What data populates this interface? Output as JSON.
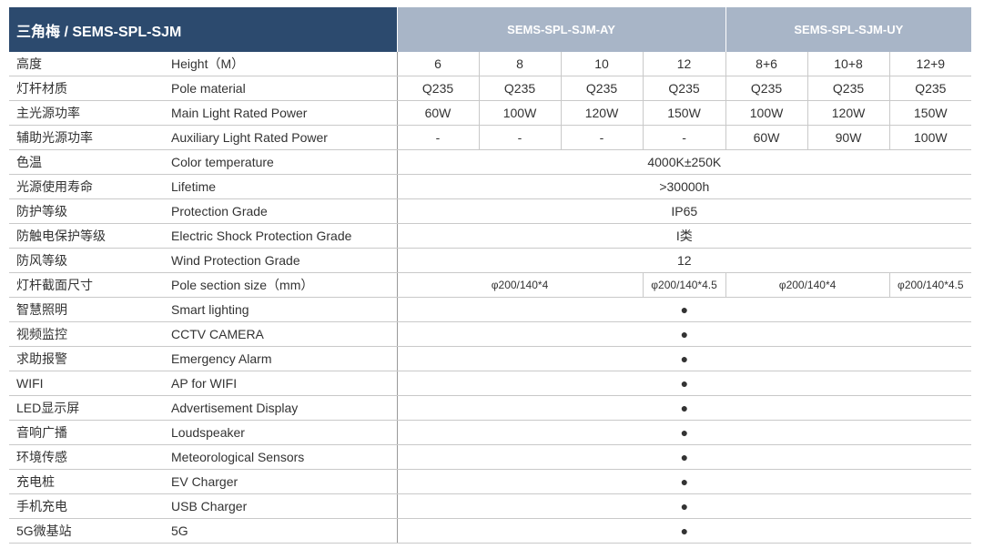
{
  "header": {
    "title": "三角梅 / SEMS-SPL-SJM",
    "groups": [
      "SEMS-SPL-SJM-AY",
      "SEMS-SPL-SJM-UY"
    ]
  },
  "rows": [
    {
      "cn": "高度",
      "en": "Height（M）",
      "cells": [
        "6",
        "8",
        "10",
        "12",
        "8+6",
        "10+8",
        "12+9"
      ]
    },
    {
      "cn": "灯杆材质",
      "en": "Pole material",
      "cells": [
        "Q235",
        "Q235",
        "Q235",
        "Q235",
        "Q235",
        "Q235",
        "Q235"
      ]
    },
    {
      "cn": "主光源功率",
      "en": "Main Light Rated Power",
      "cells": [
        "60W",
        "100W",
        "120W",
        "150W",
        "100W",
        "120W",
        "150W"
      ]
    },
    {
      "cn": "辅助光源功率",
      "en": "Auxiliary Light Rated Power",
      "cells": [
        "-",
        "-",
        "-",
        "-",
        "60W",
        "90W",
        "100W"
      ]
    },
    {
      "cn": "色温",
      "en": "Color temperature",
      "cells": [
        "4000K±250K"
      ]
    },
    {
      "cn": "光源使用寿命",
      "en": "Lifetime",
      "cells": [
        ">30000h"
      ]
    },
    {
      "cn": "防护等级",
      "en": "Protection Grade",
      "cells": [
        "IP65"
      ]
    },
    {
      "cn": "防触电保护等级",
      "en": "Electric Shock Protection Grade",
      "cells": [
        "I类"
      ]
    },
    {
      "cn": "防风等级",
      "en": "Wind Protection Grade",
      "cells": [
        "12"
      ]
    },
    {
      "cn": "灯杆截面尺寸",
      "en": "Pole section size（mm）",
      "cells": [
        "φ200/140*4",
        "φ200/140*4.5",
        "φ200/140*4",
        "φ200/140*4.5"
      ]
    },
    {
      "cn": "智慧照明",
      "en": "Smart lighting",
      "cells": [
        "●"
      ]
    },
    {
      "cn": "视频监控",
      "en": "CCTV CAMERA",
      "cells": [
        "●"
      ]
    },
    {
      "cn": "求助报警",
      "en": "Emergency Alarm",
      "cells": [
        "●"
      ]
    },
    {
      "cn": "WIFI",
      "en": "AP for WIFI",
      "cells": [
        "●"
      ]
    },
    {
      "cn": "LED显示屏",
      "en": "Advertisement Display",
      "cells": [
        "●"
      ]
    },
    {
      "cn": "音响广播",
      "en": "Loudspeaker",
      "cells": [
        "●"
      ]
    },
    {
      "cn": "环境传感",
      "en": "Meteorological Sensors",
      "cells": [
        "●"
      ]
    },
    {
      "cn": "充电桩",
      "en": "EV Charger",
      "cells": [
        "●"
      ]
    },
    {
      "cn": "手机充电",
      "en": "USB Charger",
      "cells": [
        "●"
      ]
    },
    {
      "cn": "5G微基站",
      "en": "5G",
      "cells": [
        "●"
      ]
    }
  ]
}
